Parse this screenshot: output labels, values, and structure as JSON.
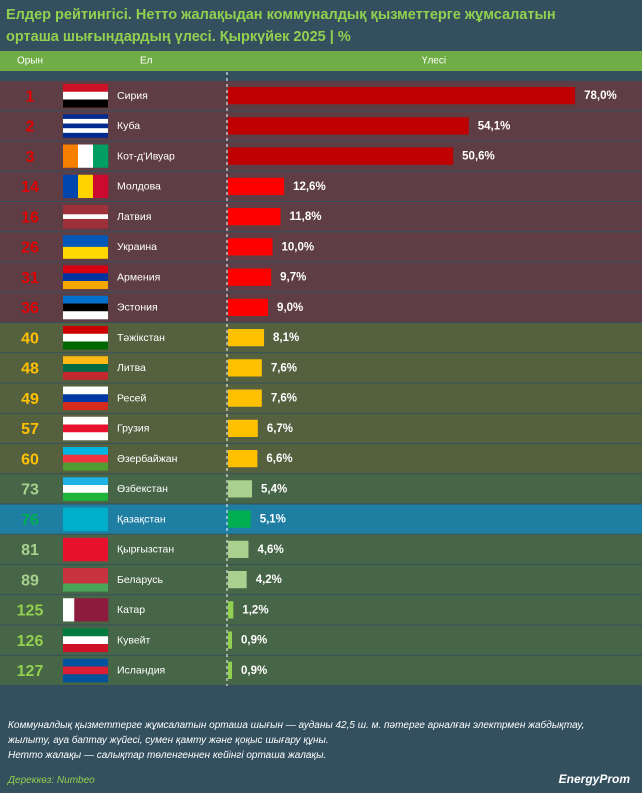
{
  "chart_data": {
    "type": "bar",
    "title": "Елдер рейтингісі. Нетто жалақыдан коммуналдық қызметтерге жұмсалатын орташа шығындардың үлесі. Қыркүйек 2025",
    "unit": "%",
    "headers": [
      "Орын",
      "Ел",
      "Үлесі"
    ],
    "ranks": [
      1,
      2,
      3,
      14,
      16,
      26,
      31,
      36,
      40,
      48,
      49,
      57,
      60,
      73,
      76,
      81,
      89,
      125,
      126,
      127
    ],
    "categories": [
      "Сирия",
      "Куба",
      "Кот-д'Ивуар",
      "Молдова",
      "Латвия",
      "Украина",
      "Армения",
      "Эстония",
      "Тәжікстан",
      "Литва",
      "Ресей",
      "Грузия",
      "Әзербайжан",
      "Өзбекстан",
      "Қазақстан",
      "Қырғызстан",
      "Беларусь",
      "Катар",
      "Кувейт",
      "Исландия"
    ],
    "values": [
      78.0,
      54.1,
      50.6,
      12.6,
      11.8,
      10.0,
      9.7,
      9.0,
      8.1,
      7.6,
      7.6,
      6.7,
      6.6,
      5.4,
      5.1,
      4.6,
      4.2,
      1.2,
      0.9,
      0.9
    ],
    "value_labels": [
      "78,0%",
      "54,1%",
      "50,6%",
      "12,6%",
      "11,8%",
      "10,0%",
      "9,7%",
      "9,0%",
      "8,1%",
      "7,6%",
      "7,6%",
      "6,7%",
      "6,6%",
      "5,4%",
      "5,1%",
      "4,6%",
      "4,2%",
      "1,2%",
      "0,9%",
      "0,9%"
    ],
    "bar_colors": [
      "#c00000",
      "#c00000",
      "#c00000",
      "#ff0000",
      "#ff0000",
      "#ff0000",
      "#ff0000",
      "#ff0000",
      "#ffc000",
      "#ffc000",
      "#ffc000",
      "#ffc000",
      "#ffc000",
      "#a9d08e",
      "#00b050",
      "#a9d08e",
      "#a9d08e",
      "#92d050",
      "#92d050",
      "#92d050"
    ],
    "rank_colors": [
      "#e00000",
      "#e00000",
      "#e00000",
      "#e00000",
      "#e00000",
      "#e00000",
      "#e00000",
      "#e00000",
      "#ffc000",
      "#ffc000",
      "#ffc000",
      "#ffc000",
      "#ffc000",
      "#a9d08e",
      "#00b050",
      "#a9d08e",
      "#a9d08e",
      "#92d050",
      "#92d050",
      "#92d050"
    ],
    "row_colors": [
      "#5e3d45",
      "#5e3d45",
      "#5e3d45",
      "#5e3d45",
      "#5e3d45",
      "#5e3d45",
      "#5e3d45",
      "#5e3d45",
      "#55603f",
      "#55603f",
      "#55603f",
      "#55603f",
      "#55603f",
      "#476547",
      "#1f7fa3",
      "#476547",
      "#476547",
      "#476547",
      "#476547",
      "#476547"
    ],
    "notes": [
      "Коммуналдық қызметтерге жұмсалатын орташа шығын — ауданы 42,5 ш. м. пәтерге арналған электрмен жабдықтау, жылыту, ауа баптау жүйесі, сумен қамту және қоқыс шығару құны.",
      "Нетто жалақы — салықтар төленгеннен кейінгі орташа жалақы."
    ],
    "source": "Дереккөз: Numbeo",
    "brand": "EnergyProm"
  }
}
